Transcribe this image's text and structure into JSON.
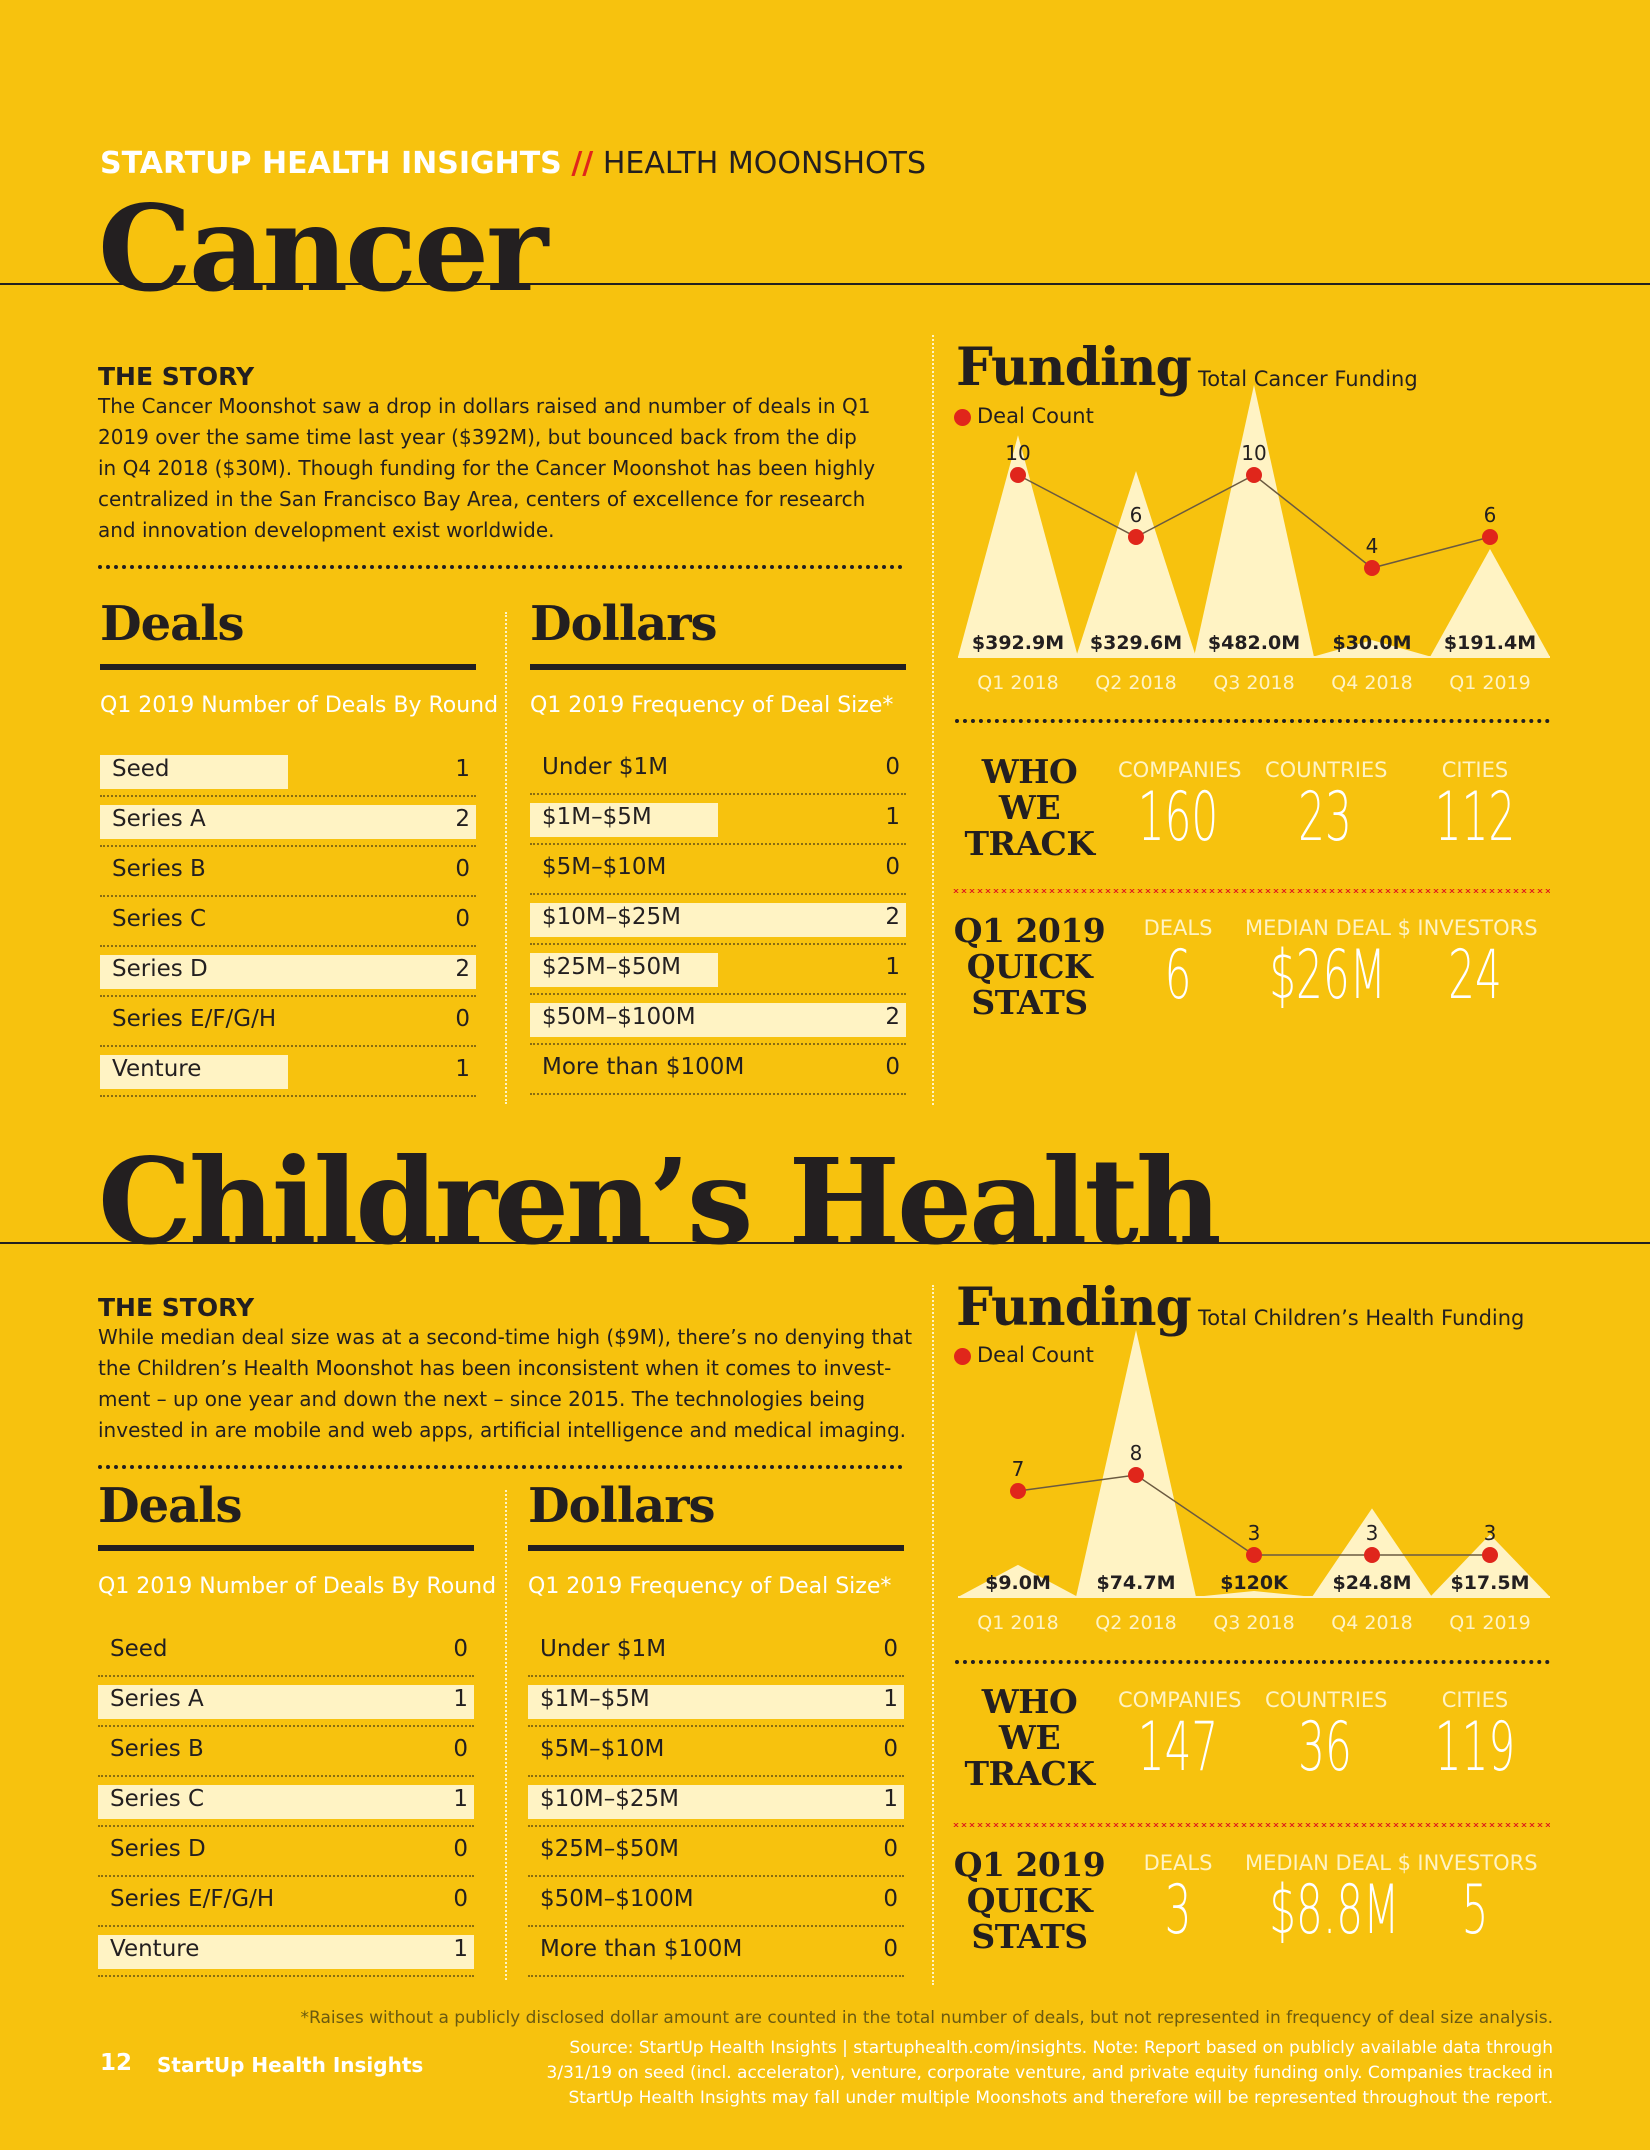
{
  "header": {
    "kicker_brand": "STARTUP HEALTH INSIGHTS",
    "kicker_sep": "//",
    "kicker_section": "HEALTH MOONSHOTS"
  },
  "cancer": {
    "title": "Cancer",
    "story_head": "THE STORY",
    "story_lines": [
      "The Cancer Moonshot saw a drop in dollars raised and number of deals in Q1",
      "2019 over the same time last year ($392M), but bounced back from the dip",
      "in Q4 2018 ($30M). Though funding for the Cancer Moonshot has been highly",
      "centralized in the San Francisco Bay Area, centers of excellence for research",
      "and innovation development exist worldwide."
    ],
    "deals": {
      "title": "Deals",
      "subtitle": "Q1 2019 Number of Deals By Round",
      "rows": [
        {
          "label": "Seed",
          "value": "1",
          "frac": 0.5
        },
        {
          "label": "Series A",
          "value": "2",
          "frac": 1.0
        },
        {
          "label": "Series B",
          "value": "0",
          "frac": 0
        },
        {
          "label": "Series C",
          "value": "0",
          "frac": 0
        },
        {
          "label": "Series D",
          "value": "2",
          "frac": 1.0
        },
        {
          "label": "Series E/F/G/H",
          "value": "0",
          "frac": 0
        },
        {
          "label": "Venture",
          "value": "1",
          "frac": 0.5
        }
      ]
    },
    "dollars": {
      "title": "Dollars",
      "subtitle": "Q1 2019 Frequency of Deal Size*",
      "rows": [
        {
          "label": "Under $1M",
          "value": "0",
          "frac": 0
        },
        {
          "label": "$1M–$5M",
          "value": "1",
          "frac": 0.5
        },
        {
          "label": "$5M–$10M",
          "value": "0",
          "frac": 0
        },
        {
          "label": "$10M–$25M",
          "value": "2",
          "frac": 1.0
        },
        {
          "label": "$25M–$50M",
          "value": "1",
          "frac": 0.5
        },
        {
          "label": "$50M–$100M",
          "value": "2",
          "frac": 1.0
        },
        {
          "label": "More than $100M",
          "value": "0",
          "frac": 0
        }
      ]
    },
    "funding": {
      "title": "Funding",
      "subtitle": "Total Cancer Funding",
      "legend": "Deal Count"
    },
    "who": {
      "title_lines": [
        "WHO",
        "WE",
        "TRACK"
      ],
      "stats": [
        {
          "label": "COMPANIES",
          "value": "160"
        },
        {
          "label": "COUNTRIES",
          "value": "23"
        },
        {
          "label": "CITIES",
          "value": "112"
        }
      ]
    },
    "quick": {
      "title_lines": [
        "Q1 2019",
        "QUICK",
        "STATS"
      ],
      "stats": [
        {
          "label": "DEALS",
          "value": "6"
        },
        {
          "label": "MEDIAN DEAL $",
          "value": "$26M"
        },
        {
          "label": "INVESTORS",
          "value": "24"
        }
      ]
    }
  },
  "children": {
    "title": "Children’s Health",
    "story_head": "THE STORY",
    "story_lines": [
      "While median deal size was at a second-time high ($9M), there’s no denying that",
      "the Children’s Health Moonshot has been inconsistent when it comes to invest-",
      "ment – up one year and down the next – since 2015. The technologies being",
      "invested in are mobile and web apps, artificial intelligence and medical imaging."
    ],
    "deals": {
      "title": "Deals",
      "subtitle": "Q1 2019 Number of Deals By Round",
      "rows": [
        {
          "label": "Seed",
          "value": "0",
          "frac": 0
        },
        {
          "label": "Series A",
          "value": "1",
          "frac": 1.0
        },
        {
          "label": "Series B",
          "value": "0",
          "frac": 0
        },
        {
          "label": "Series C",
          "value": "1",
          "frac": 1.0
        },
        {
          "label": "Series D",
          "value": "0",
          "frac": 0
        },
        {
          "label": "Series E/F/G/H",
          "value": "0",
          "frac": 0
        },
        {
          "label": "Venture",
          "value": "1",
          "frac": 1.0
        }
      ]
    },
    "dollars": {
      "title": "Dollars",
      "subtitle": "Q1 2019 Frequency of Deal Size*",
      "rows": [
        {
          "label": "Under $1M",
          "value": "0",
          "frac": 0
        },
        {
          "label": "$1M–$5M",
          "value": "1",
          "frac": 1.0
        },
        {
          "label": "$5M–$10M",
          "value": "0",
          "frac": 0
        },
        {
          "label": "$10M–$25M",
          "value": "1",
          "frac": 1.0
        },
        {
          "label": "$25M–$50M",
          "value": "0",
          "frac": 0
        },
        {
          "label": "$50M–$100M",
          "value": "0",
          "frac": 0
        },
        {
          "label": "More than $100M",
          "value": "0",
          "frac": 0
        }
      ]
    },
    "funding": {
      "title": "Funding",
      "subtitle": "Total Children’s Health Funding",
      "legend": "Deal Count"
    },
    "who": {
      "title_lines": [
        "WHO",
        "WE",
        "TRACK"
      ],
      "stats": [
        {
          "label": "COMPANIES",
          "value": "147"
        },
        {
          "label": "COUNTRIES",
          "value": "36"
        },
        {
          "label": "CITIES",
          "value": "119"
        }
      ]
    },
    "quick": {
      "title_lines": [
        "Q1 2019",
        "QUICK",
        "STATS"
      ],
      "stats": [
        {
          "label": "DEALS",
          "value": "3"
        },
        {
          "label": "MEDIAN DEAL $",
          "value": "$8.8M"
        },
        {
          "label": "INVESTORS",
          "value": "5"
        }
      ]
    }
  },
  "chart_data": [
    {
      "type": "area",
      "title": "Total Cancer Funding",
      "categories": [
        "Q1 2018",
        "Q2 2018",
        "Q3 2018",
        "Q4 2018",
        "Q1 2019"
      ],
      "series": [
        {
          "values": [
            392.9,
            329.6,
            482.0,
            30.0,
            191.4
          ],
          "labels": [
            "$392.9M",
            "$329.6M",
            "$482.0M",
            "$30.0M",
            "$191.4M"
          ]
        },
        {
          "name": "Deal Count",
          "type": "line",
          "values": [
            10,
            6,
            10,
            4,
            6
          ]
        }
      ],
      "ylim": [
        0,
        482.0
      ],
      "count_lim": [
        0,
        16
      ]
    },
    {
      "type": "area",
      "title": "Total Children’s Health Funding",
      "categories": [
        "Q1 2018",
        "Q2 2018",
        "Q3 2018",
        "Q4 2018",
        "Q1 2019"
      ],
      "series": [
        {
          "values": [
            9.0,
            74.7,
            0.12,
            24.8,
            17.5
          ],
          "labels": [
            "$9.0M",
            "$74.7M",
            "$120K",
            "$24.8M",
            "$17.5M"
          ]
        },
        {
          "name": "Deal Count",
          "type": "line",
          "values": [
            7,
            8,
            3,
            3,
            3
          ]
        }
      ],
      "ylim": [
        0,
        74.7
      ],
      "count_lim": [
        0,
        12
      ]
    }
  ],
  "footer": {
    "footnote": "*Raises without a publicly disclosed dollar amount are counted in the total number of deals, but not represented in frequency of deal size analysis.",
    "source_lines": [
      "Source: StartUp Health Insights | startuphealth.com/insights. Note: Report based on publicly available data through",
      "3/31/19 on seed (incl. accelerator), venture, corporate venture, and private equity funding only. Companies tracked in",
      "StartUp Health Insights may fall under multiple Moonshots and therefore will be represented throughout the report."
    ],
    "page_number": "12",
    "publication": "StartUp Health Insights"
  }
}
